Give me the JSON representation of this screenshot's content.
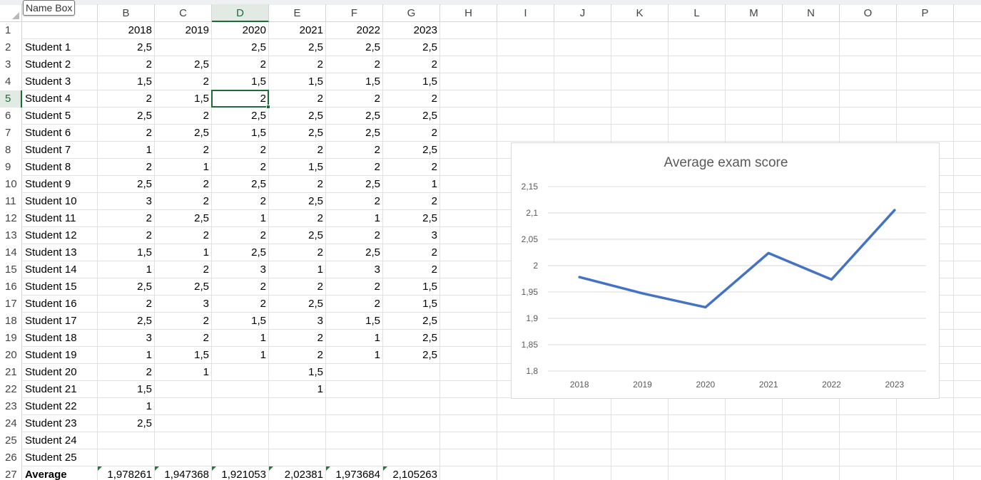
{
  "namebox_tooltip": "Name Box",
  "columns": [
    "B",
    "C",
    "D",
    "E",
    "F",
    "G",
    "H",
    "I",
    "J",
    "K",
    "L",
    "M",
    "N",
    "O",
    "P"
  ],
  "active_column": "D",
  "active_row": 5,
  "row_numbers": [
    1,
    2,
    3,
    4,
    5,
    6,
    7,
    8,
    9,
    10,
    11,
    12,
    13,
    14,
    15,
    16,
    17,
    18,
    19,
    20,
    21,
    22,
    23,
    24,
    25,
    26,
    27
  ],
  "header_row": [
    "",
    "2018",
    "2019",
    "2020",
    "2021",
    "2022",
    "2023"
  ],
  "rows": [
    [
      "Student 1",
      "2,5",
      "",
      "2,5",
      "2,5",
      "2,5",
      "2,5"
    ],
    [
      "Student 2",
      "2",
      "2,5",
      "2",
      "2",
      "2",
      "2"
    ],
    [
      "Student 3",
      "1,5",
      "2",
      "1,5",
      "1,5",
      "1,5",
      "1,5"
    ],
    [
      "Student 4",
      "2",
      "1,5",
      "2",
      "2",
      "2",
      "2"
    ],
    [
      "Student 5",
      "2,5",
      "2",
      "2,5",
      "2,5",
      "2,5",
      "2,5"
    ],
    [
      "Student 6",
      "2",
      "2,5",
      "1,5",
      "2,5",
      "2,5",
      "2"
    ],
    [
      "Student 7",
      "1",
      "2",
      "2",
      "2",
      "2",
      "2,5"
    ],
    [
      "Student 8",
      "2",
      "1",
      "2",
      "1,5",
      "2",
      "2"
    ],
    [
      "Student 9",
      "2,5",
      "2",
      "2,5",
      "2",
      "2,5",
      "1"
    ],
    [
      "Student 10",
      "3",
      "2",
      "2",
      "2,5",
      "2",
      "2"
    ],
    [
      "Student 11",
      "2",
      "2,5",
      "1",
      "2",
      "1",
      "2,5"
    ],
    [
      "Student 12",
      "2",
      "2",
      "2",
      "2,5",
      "2",
      "3"
    ],
    [
      "Student 13",
      "1,5",
      "1",
      "2,5",
      "2",
      "2,5",
      "2"
    ],
    [
      "Student 14",
      "1",
      "2",
      "3",
      "1",
      "3",
      "2"
    ],
    [
      "Student 15",
      "2,5",
      "2,5",
      "2",
      "2",
      "2",
      "1,5"
    ],
    [
      "Student 16",
      "2",
      "3",
      "2",
      "2,5",
      "2",
      "1,5"
    ],
    [
      "Student 17",
      "2,5",
      "2",
      "1,5",
      "3",
      "1,5",
      "2,5"
    ],
    [
      "Student 18",
      "3",
      "2",
      "1",
      "2",
      "1",
      "2,5"
    ],
    [
      "Student 19",
      "1",
      "1,5",
      "1",
      "2",
      "1",
      "2,5"
    ],
    [
      "Student 20",
      "2",
      "1",
      "",
      "1,5",
      "",
      ""
    ],
    [
      "Student 21",
      "1,5",
      "",
      "",
      "1",
      "",
      ""
    ],
    [
      "Student 22",
      "1",
      "",
      "",
      "",
      "",
      ""
    ],
    [
      "Student 23",
      "2,5",
      "",
      "",
      "",
      "",
      ""
    ],
    [
      "Student 24",
      "",
      "",
      "",
      "",
      "",
      ""
    ],
    [
      "Student 25",
      "",
      "",
      "",
      "",
      "",
      ""
    ]
  ],
  "average_row": [
    "Average",
    "1,978261",
    "1,947368",
    "1,921053",
    "2,02381",
    "1,973684",
    "2,105263"
  ],
  "chart_data": {
    "type": "line",
    "title": "Average exam score",
    "categories": [
      "2018",
      "2019",
      "2020",
      "2021",
      "2022",
      "2023"
    ],
    "series": [
      {
        "values": [
          1.978261,
          1.947368,
          1.921053,
          2.02381,
          1.973684,
          2.105263
        ],
        "color": "#4472c4"
      }
    ],
    "y_ticks": [
      "1,8",
      "1,85",
      "1,9",
      "1,95",
      "2",
      "2,05",
      "2,1",
      "2,15"
    ],
    "ylim": [
      1.8,
      2.15
    ],
    "grid": true,
    "legend": "none",
    "xlabel": "",
    "ylabel": ""
  }
}
